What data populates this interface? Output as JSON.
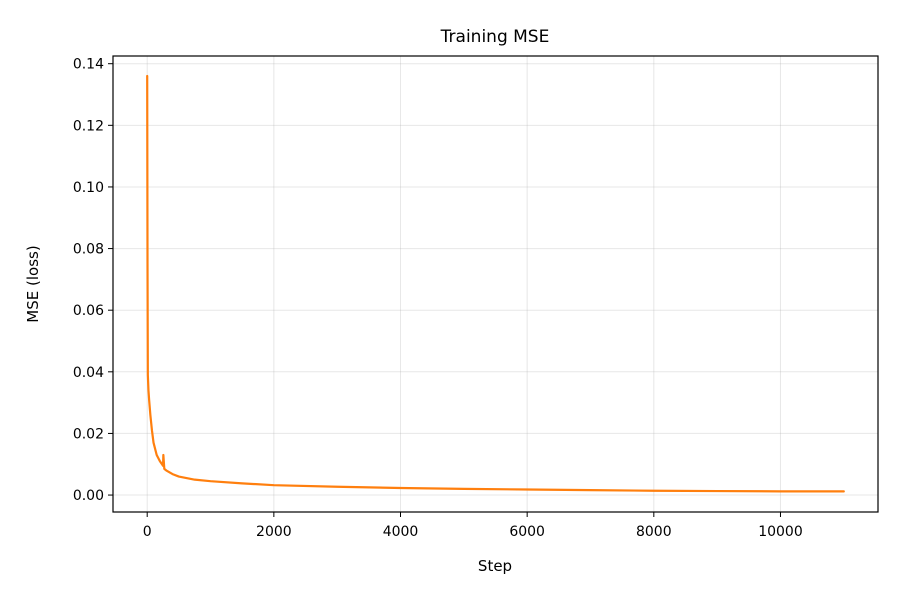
{
  "chart_data": {
    "type": "line",
    "title": "Training MSE",
    "xlabel": "Step",
    "ylabel": "MSE (loss)",
    "xlim": [
      -540,
      11540
    ],
    "ylim": [
      -0.0055,
      0.1425
    ],
    "xticks": [
      0,
      2000,
      4000,
      6000,
      8000,
      10000
    ],
    "xtick_labels": [
      "0",
      "2000",
      "4000",
      "6000",
      "8000",
      "10000"
    ],
    "yticks": [
      0.0,
      0.02,
      0.04,
      0.06,
      0.08,
      0.1,
      0.12,
      0.14
    ],
    "ytick_labels": [
      "0.00",
      "0.02",
      "0.04",
      "0.06",
      "0.08",
      "0.10",
      "0.12",
      "0.14"
    ],
    "grid": true,
    "legend": "none",
    "series": [
      {
        "color": "#ff7f0e",
        "x": [
          0,
          5,
          10,
          20,
          30,
          50,
          75,
          100,
          150,
          200,
          250,
          255,
          270,
          300,
          400,
          500,
          750,
          1000,
          1500,
          2000,
          3000,
          4000,
          5000,
          6000,
          7000,
          8000,
          9000,
          10000,
          11000
        ],
        "y": [
          0.136,
          0.075,
          0.039,
          0.034,
          0.031,
          0.026,
          0.021,
          0.017,
          0.013,
          0.011,
          0.0095,
          0.013,
          0.0085,
          0.008,
          0.0068,
          0.006,
          0.005,
          0.0045,
          0.0038,
          0.0032,
          0.0027,
          0.0023,
          0.002,
          0.0018,
          0.0016,
          0.0014,
          0.0013,
          0.0012,
          0.0012
        ]
      }
    ]
  }
}
